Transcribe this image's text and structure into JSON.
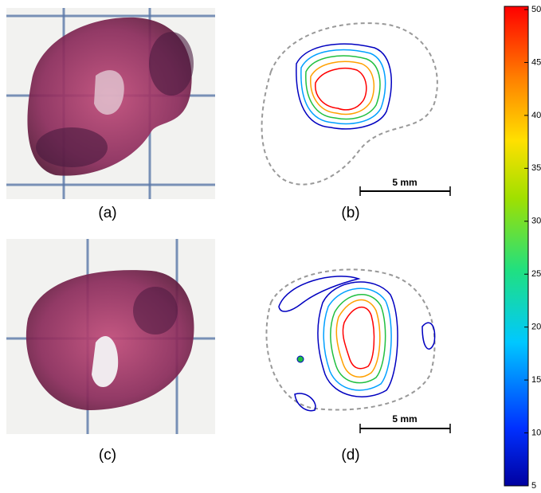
{
  "panels": [
    {
      "label": "(a)"
    },
    {
      "label": "(b)",
      "scale_bar": "5 mm"
    },
    {
      "label": "(c)"
    },
    {
      "label": "(d)",
      "scale_bar": "5 mm"
    }
  ],
  "colorbar": {
    "lim": [
      5,
      50
    ],
    "ticks": [
      5,
      10,
      15,
      20,
      25,
      30,
      35,
      40,
      45,
      50
    ]
  }
}
